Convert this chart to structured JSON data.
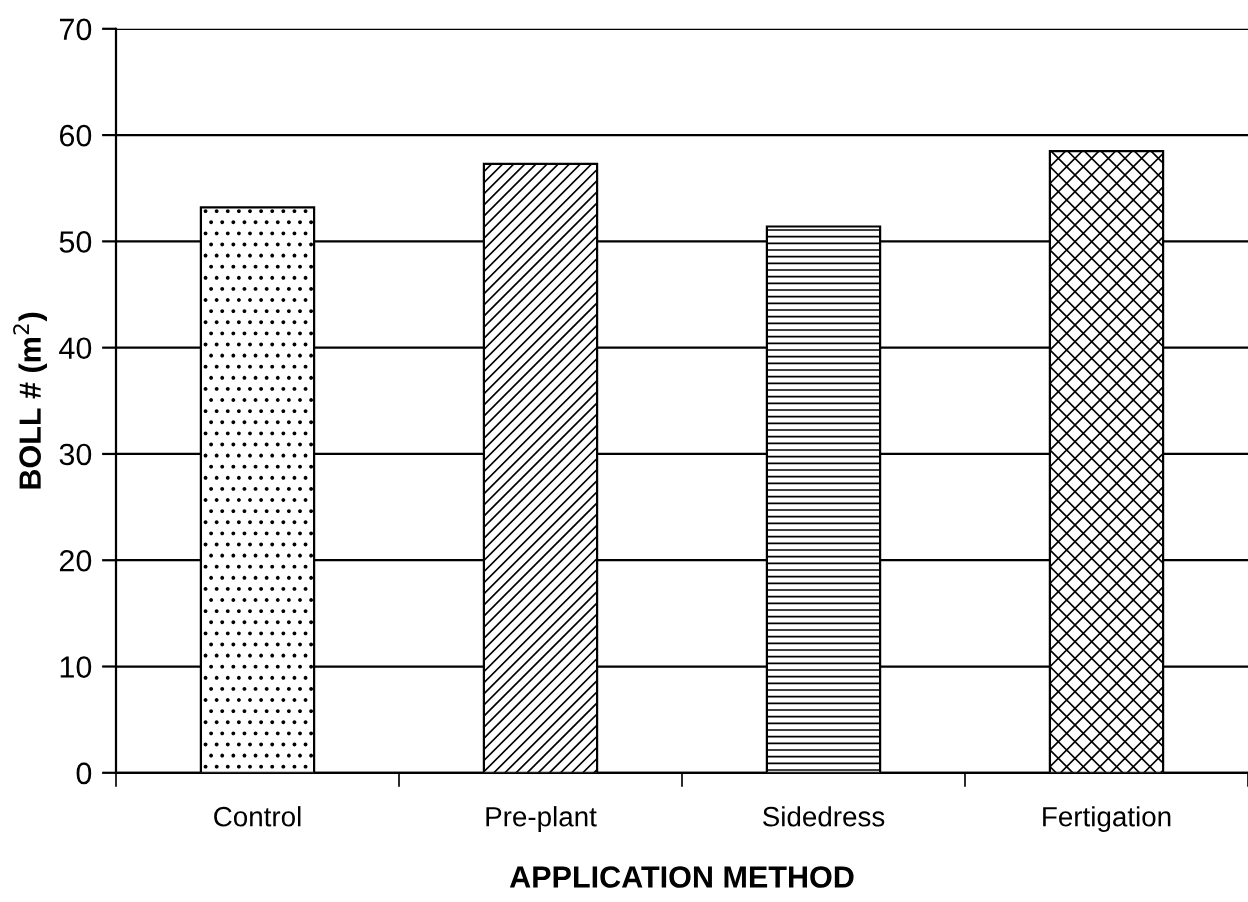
{
  "chart_data": {
    "type": "bar",
    "xlabel": "APPLICATION METHOD",
    "ylabel": "BOLL # (m$^{2}$)",
    "categories": [
      "Control",
      "Pre-plant",
      "Sidedress",
      "Fertigation"
    ],
    "values": [
      53.2,
      57.3,
      51.4,
      58.5
    ],
    "colors": [
      "#ffffff",
      "#ffffff",
      "#ffffff",
      "#ffffff"
    ],
    "ylim": [
      0,
      70
    ],
    "yticks": [
      0,
      10,
      20,
      30,
      40,
      50,
      60,
      70
    ],
    "grid": "y",
    "legend": false
  }
}
